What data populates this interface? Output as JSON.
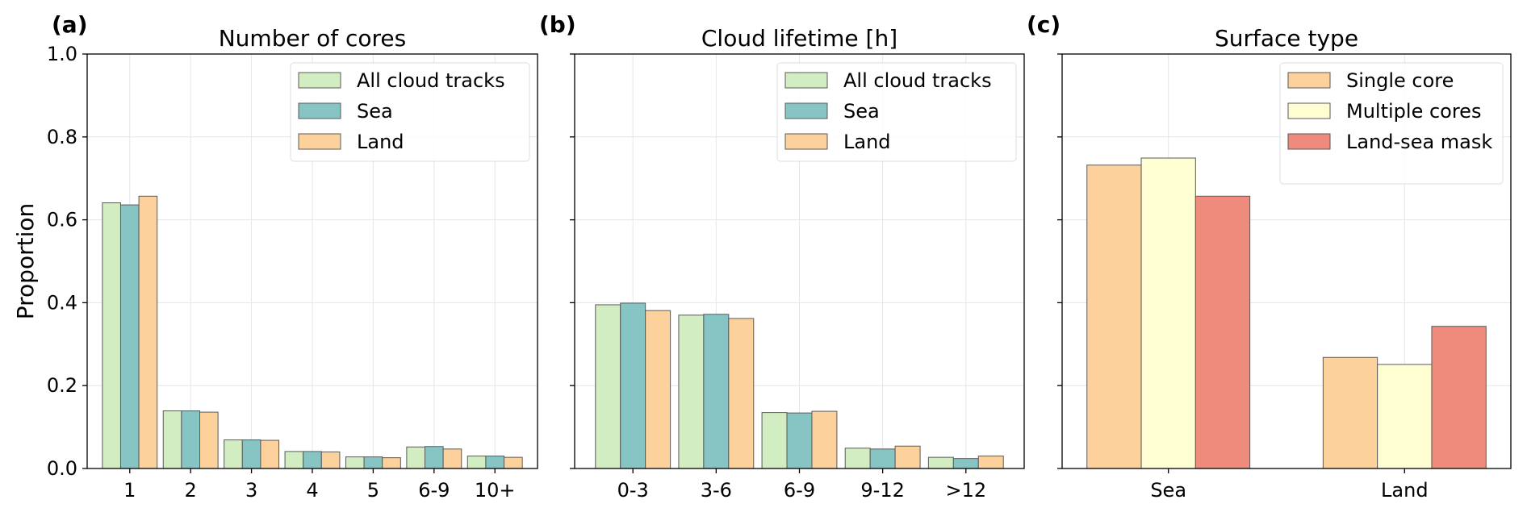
{
  "colors": {
    "all": "#d3edc3",
    "sea": "#86c5c4",
    "land": "#fdd19b",
    "single": "#fdd19b",
    "multiple": "#fefed2",
    "mask": "#ef8b7d"
  },
  "y_axis": {
    "label": "Proportion",
    "ticks": [
      "0.0",
      "0.2",
      "0.4",
      "0.6",
      "0.8",
      "1.0"
    ]
  },
  "chart_data": [
    {
      "panel": "(a)",
      "type": "bar",
      "title": "Number of cores",
      "categories": [
        "1",
        "2",
        "3",
        "4",
        "5",
        "6-9",
        "10+"
      ],
      "ylim": [
        0,
        1.0
      ],
      "legend": "top-right",
      "grid": true,
      "series": [
        {
          "name": "All cloud tracks",
          "color_key": "all",
          "values": [
            0.641,
            0.139,
            0.069,
            0.041,
            0.028,
            0.052,
            0.03
          ]
        },
        {
          "name": "Sea",
          "color_key": "sea",
          "values": [
            0.636,
            0.139,
            0.069,
            0.041,
            0.028,
            0.053,
            0.03
          ]
        },
        {
          "name": "Land",
          "color_key": "land",
          "values": [
            0.657,
            0.136,
            0.068,
            0.04,
            0.026,
            0.047,
            0.027
          ]
        }
      ]
    },
    {
      "panel": "(b)",
      "type": "bar",
      "title": "Cloud lifetime [h]",
      "categories": [
        "0-3",
        "3-6",
        "6-9",
        "9-12",
        ">12"
      ],
      "ylim": [
        0,
        1.0
      ],
      "legend": "top-right",
      "grid": true,
      "series": [
        {
          "name": "All cloud tracks",
          "color_key": "all",
          "values": [
            0.395,
            0.37,
            0.135,
            0.049,
            0.027
          ]
        },
        {
          "name": "Sea",
          "color_key": "sea",
          "values": [
            0.399,
            0.372,
            0.134,
            0.047,
            0.024
          ]
        },
        {
          "name": "Land",
          "color_key": "land",
          "values": [
            0.381,
            0.362,
            0.138,
            0.054,
            0.03
          ]
        }
      ]
    },
    {
      "panel": "(c)",
      "type": "bar",
      "title": "Surface type",
      "categories": [
        "Sea",
        "Land"
      ],
      "ylim": [
        0,
        1.0
      ],
      "legend": "top-right",
      "grid": true,
      "series": [
        {
          "name": "Single core",
          "color_key": "single",
          "values": [
            0.732,
            0.268
          ]
        },
        {
          "name": "Multiple cores",
          "color_key": "multiple",
          "values": [
            0.749,
            0.251
          ]
        },
        {
          "name": "Land-sea mask",
          "color_key": "mask",
          "values": [
            0.657,
            0.343
          ]
        }
      ]
    }
  ]
}
